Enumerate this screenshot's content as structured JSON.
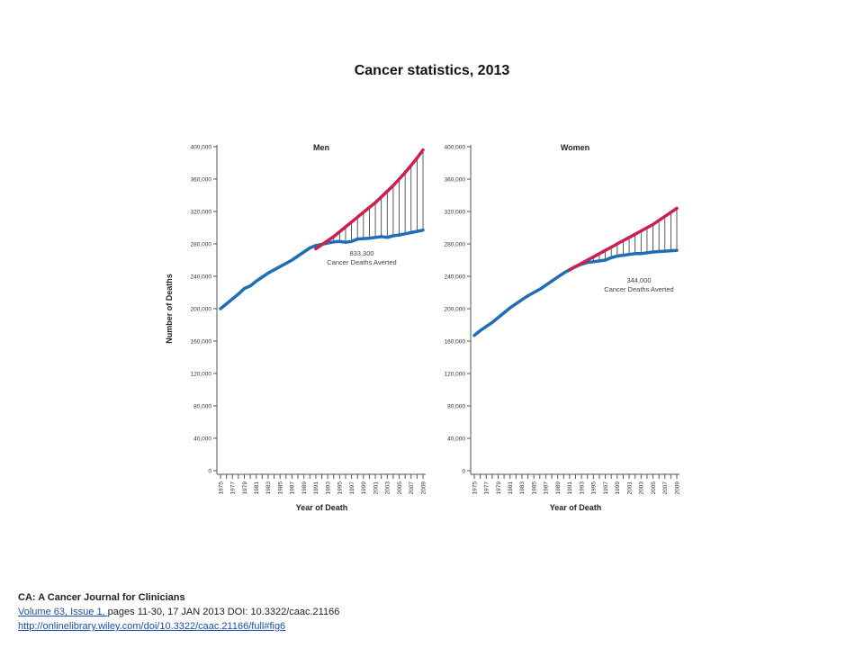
{
  "slide": {
    "title": "Cancer statistics, 2013"
  },
  "citation": {
    "journal": "CA: A Cancer Journal for Clinicians",
    "volume_link": "Volume 63, Issue 1, ",
    "pages": "pages 11-30, 17 JAN 2013 DOI: 10.3322/caac.21166",
    "url": "http://onlinelibrary.wiley.com/doi/10.3322/caac.21166/full#fig6"
  },
  "colors": {
    "actual": "#1f6db5",
    "expected": "#cc1f4a",
    "averted_lines": "#333333",
    "axis": "#555555"
  },
  "chart_data": [
    {
      "type": "line",
      "title": "Men",
      "xlabel": "Year of Death",
      "ylabel": "Number of Deaths",
      "xlim": [
        1975,
        2009
      ],
      "ylim": [
        0,
        400000
      ],
      "ytick_labels": [
        "0",
        "40,000",
        "80,000",
        "120,000",
        "160,000",
        "200,000",
        "240,000",
        "280,000",
        "320,000",
        "360,000",
        "400,000"
      ],
      "xtick_labels": [
        "1975",
        "1977",
        "1979",
        "1981",
        "1983",
        "1985",
        "1987",
        "1989",
        "1991",
        "1993",
        "1995",
        "1997",
        "1999",
        "2001",
        "2003",
        "2005",
        "2007",
        "2009"
      ],
      "annotation": {
        "value": "833,300",
        "text": "Cancer Deaths Averted"
      },
      "averted_from_year": 1991,
      "series": [
        {
          "x": [
            1975,
            1976,
            1977,
            1978,
            1979,
            1980,
            1981,
            1982,
            1983,
            1984,
            1985,
            1986,
            1987,
            1988,
            1989,
            1990,
            1991,
            1992,
            1993,
            1994,
            1995,
            1996,
            1997,
            1998,
            1999,
            2000,
            2001,
            2002,
            2003,
            2004,
            2005,
            2006,
            2007,
            2008,
            2009
          ],
          "values": [
            200000,
            206000,
            212000,
            218000,
            225000,
            228000,
            234000,
            239000,
            244000,
            248000,
            252000,
            256000,
            260000,
            265000,
            270000,
            275000,
            278000,
            279500,
            281000,
            282500,
            283000,
            282000,
            283000,
            286000,
            286500,
            287000,
            288000,
            289000,
            288000,
            290000,
            291000,
            292500,
            294000,
            295500,
            297000
          ]
        },
        {
          "x": [
            1991,
            1992,
            1993,
            1994,
            1995,
            1996,
            1997,
            1998,
            1999,
            2000,
            2001,
            2002,
            2003,
            2004,
            2005,
            2006,
            2007,
            2008,
            2009
          ],
          "values": [
            274000,
            279000,
            284000,
            289000,
            295000,
            301000,
            307000,
            313000,
            319000,
            325000,
            331000,
            338000,
            345000,
            352000,
            360000,
            368000,
            377000,
            386000,
            396000
          ]
        }
      ]
    },
    {
      "type": "line",
      "title": "Women",
      "xlabel": "Year of Death",
      "ylabel": "",
      "xlim": [
        1975,
        2009
      ],
      "ylim": [
        0,
        400000
      ],
      "ytick_labels": [
        "0",
        "40,000",
        "80,000",
        "120,000",
        "160,000",
        "200,000",
        "240,000",
        "280,000",
        "320,000",
        "360,000",
        "400,000"
      ],
      "xtick_labels": [
        "1975",
        "1977",
        "1979",
        "1981",
        "1983",
        "1985",
        "1987",
        "1989",
        "1991",
        "1993",
        "1995",
        "1997",
        "1999",
        "2001",
        "2003",
        "2005",
        "2007",
        "2009"
      ],
      "annotation": {
        "value": "344,000",
        "text": "Cancer Deaths Averted"
      },
      "averted_from_year": 1991,
      "series": [
        {
          "x": [
            1975,
            1976,
            1977,
            1978,
            1979,
            1980,
            1981,
            1982,
            1983,
            1984,
            1985,
            1986,
            1987,
            1988,
            1989,
            1990,
            1991,
            1992,
            1993,
            1994,
            1995,
            1996,
            1997,
            1998,
            1999,
            2000,
            2001,
            2002,
            2003,
            2004,
            2005,
            2006,
            2007,
            2008,
            2009
          ],
          "values": [
            167000,
            173000,
            178000,
            183000,
            189000,
            195000,
            201000,
            206000,
            211000,
            216000,
            220000,
            224000,
            229000,
            234000,
            239000,
            244000,
            248000,
            252000,
            255000,
            257000,
            258000,
            259000,
            260000,
            263000,
            265000,
            266000,
            267000,
            268000,
            268000,
            269000,
            270000,
            270500,
            271000,
            271500,
            272000
          ]
        },
        {
          "x": [
            1991,
            1992,
            1993,
            1994,
            1995,
            1996,
            1997,
            1998,
            1999,
            2000,
            2001,
            2002,
            2003,
            2004,
            2005,
            2006,
            2007,
            2008,
            2009
          ],
          "values": [
            248000,
            252000,
            256000,
            260000,
            264000,
            268000,
            272000,
            276000,
            280000,
            284000,
            288000,
            292000,
            296000,
            300000,
            304000,
            309000,
            314000,
            319000,
            324000
          ]
        }
      ]
    }
  ]
}
